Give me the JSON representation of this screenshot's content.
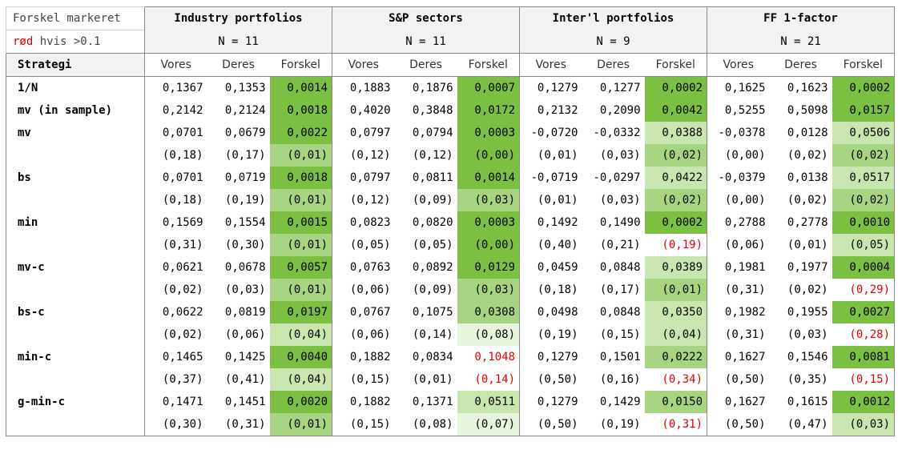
{
  "note": {
    "line1": "Forskel markeret",
    "line2_red": "rød",
    "line2_rest": " hvis >0.1"
  },
  "groups": [
    {
      "title": "Industry portfolios",
      "n": "N = 11"
    },
    {
      "title": "S&P sectors",
      "n": "N = 11"
    },
    {
      "title": "Inter'l portfolios",
      "n": "N = 9"
    },
    {
      "title": "FF 1-factor",
      "n": "N = 21"
    }
  ],
  "strategy_header": "Strategi",
  "subcols": [
    "Vores",
    "Deres",
    "Forskel"
  ],
  "colors": {
    "g1": "#7cc043",
    "g2": "#a6d480",
    "g3": "#c9e6b1",
    "g4": "#e7f4dc",
    "red": "#e00000"
  },
  "rows": [
    {
      "label": "1/N",
      "cells": [
        [
          "0,1367",
          "0,1353",
          "0,0014",
          "g1"
        ],
        [
          "0,1883",
          "0,1876",
          "0,0007",
          "g1"
        ],
        [
          "0,1279",
          "0,1277",
          "0,0002",
          "g1"
        ],
        [
          "0,1625",
          "0,1623",
          "0,0002",
          "g1"
        ]
      ]
    },
    {
      "label": "mv (in sample)",
      "cells": [
        [
          "0,2142",
          "0,2124",
          "0,0018",
          "g1"
        ],
        [
          "0,4020",
          "0,3848",
          "0,0172",
          "g1"
        ],
        [
          "0,2132",
          "0,2090",
          "0,0042",
          "g1"
        ],
        [
          "0,5255",
          "0,5098",
          "0,0157",
          "g1"
        ]
      ]
    },
    {
      "label": "mv",
      "cells": [
        [
          "0,0701",
          "0,0679",
          "0,0022",
          "g1"
        ],
        [
          "0,0797",
          "0,0794",
          "0,0003",
          "g1"
        ],
        [
          "-0,0720",
          "-0,0332",
          "0,0388",
          "g3"
        ],
        [
          "-0,0378",
          "0,0128",
          "0,0506",
          "g3"
        ]
      ]
    },
    {
      "label": "",
      "cells": [
        [
          "(0,18)",
          "(0,17)",
          "(0,01)",
          "g2"
        ],
        [
          "(0,12)",
          "(0,12)",
          "(0,00)",
          "g1"
        ],
        [
          "(0,01)",
          "(0,03)",
          "(0,02)",
          "g2"
        ],
        [
          "(0,00)",
          "(0,02)",
          "(0,02)",
          "g2"
        ]
      ]
    },
    {
      "label": "bs",
      "cells": [
        [
          "0,0701",
          "0,0719",
          "0,0018",
          "g1"
        ],
        [
          "0,0797",
          "0,0811",
          "0,0014",
          "g1"
        ],
        [
          "-0,0719",
          "-0,0297",
          "0,0422",
          "g3"
        ],
        [
          "-0,0379",
          "0,0138",
          "0,0517",
          "g3"
        ]
      ]
    },
    {
      "label": "",
      "cells": [
        [
          "(0,18)",
          "(0,19)",
          "(0,01)",
          "g2"
        ],
        [
          "(0,12)",
          "(0,09)",
          "(0,03)",
          "g2"
        ],
        [
          "(0,01)",
          "(0,03)",
          "(0,02)",
          "g2"
        ],
        [
          "(0,00)",
          "(0,02)",
          "(0,02)",
          "g2"
        ]
      ]
    },
    {
      "label": "min",
      "cells": [
        [
          "0,1569",
          "0,1554",
          "0,0015",
          "g1"
        ],
        [
          "0,0823",
          "0,0820",
          "0,0003",
          "g1"
        ],
        [
          "0,1492",
          "0,1490",
          "0,0002",
          "g1"
        ],
        [
          "0,2788",
          "0,2778",
          "0,0010",
          "g1"
        ]
      ]
    },
    {
      "label": "",
      "cells": [
        [
          "(0,31)",
          "(0,30)",
          "(0,01)",
          "g2"
        ],
        [
          "(0,05)",
          "(0,05)",
          "(0,00)",
          "g1"
        ],
        [
          "(0,40)",
          "(0,21)",
          "(0,19)",
          "red"
        ],
        [
          "(0,06)",
          "(0,01)",
          "(0,05)",
          "g3"
        ]
      ]
    },
    {
      "label": "mv-c",
      "cells": [
        [
          "0,0621",
          "0,0678",
          "0,0057",
          "g1"
        ],
        [
          "0,0763",
          "0,0892",
          "0,0129",
          "g1"
        ],
        [
          "0,0459",
          "0,0848",
          "0,0389",
          "g3"
        ],
        [
          "0,1981",
          "0,1977",
          "0,0004",
          "g1"
        ]
      ]
    },
    {
      "label": "",
      "cells": [
        [
          "(0,02)",
          "(0,03)",
          "(0,01)",
          "g2"
        ],
        [
          "(0,06)",
          "(0,09)",
          "(0,03)",
          "g2"
        ],
        [
          "(0,18)",
          "(0,17)",
          "(0,01)",
          "g2"
        ],
        [
          "(0,31)",
          "(0,02)",
          "(0,29)",
          "red"
        ]
      ]
    },
    {
      "label": "bs-c",
      "cells": [
        [
          "0,0622",
          "0,0819",
          "0,0197",
          "g1"
        ],
        [
          "0,0767",
          "0,1075",
          "0,0308",
          "g2"
        ],
        [
          "0,0498",
          "0,0848",
          "0,0350",
          "g3"
        ],
        [
          "0,1982",
          "0,1955",
          "0,0027",
          "g1"
        ]
      ]
    },
    {
      "label": "",
      "cells": [
        [
          "(0,02)",
          "(0,06)",
          "(0,04)",
          "g3"
        ],
        [
          "(0,06)",
          "(0,14)",
          "(0,08)",
          "g4"
        ],
        [
          "(0,19)",
          "(0,15)",
          "(0,04)",
          "g3"
        ],
        [
          "(0,31)",
          "(0,03)",
          "(0,28)",
          "red"
        ]
      ]
    },
    {
      "label": "min-c",
      "cells": [
        [
          "0,1465",
          "0,1425",
          "0,0040",
          "g1"
        ],
        [
          "0,1882",
          "0,0834",
          "0,1048",
          "red"
        ],
        [
          "0,1279",
          "0,1501",
          "0,0222",
          "g2"
        ],
        [
          "0,1627",
          "0,1546",
          "0,0081",
          "g1"
        ]
      ]
    },
    {
      "label": "",
      "cells": [
        [
          "(0,37)",
          "(0,41)",
          "(0,04)",
          "g3"
        ],
        [
          "(0,15)",
          "(0,01)",
          "(0,14)",
          "red"
        ],
        [
          "(0,50)",
          "(0,16)",
          "(0,34)",
          "red"
        ],
        [
          "(0,50)",
          "(0,35)",
          "(0,15)",
          "red"
        ]
      ]
    },
    {
      "label": "g-min-c",
      "cells": [
        [
          "0,1471",
          "0,1451",
          "0,0020",
          "g1"
        ],
        [
          "0,1882",
          "0,1371",
          "0,0511",
          "g3"
        ],
        [
          "0,1279",
          "0,1429",
          "0,0150",
          "g2"
        ],
        [
          "0,1627",
          "0,1615",
          "0,0012",
          "g1"
        ]
      ]
    },
    {
      "label": "",
      "cells": [
        [
          "(0,30)",
          "(0,31)",
          "(0,01)",
          "g2"
        ],
        [
          "(0,15)",
          "(0,08)",
          "(0,07)",
          "g4"
        ],
        [
          "(0,50)",
          "(0,19)",
          "(0,31)",
          "red"
        ],
        [
          "(0,50)",
          "(0,47)",
          "(0,03)",
          "g3"
        ]
      ]
    }
  ]
}
